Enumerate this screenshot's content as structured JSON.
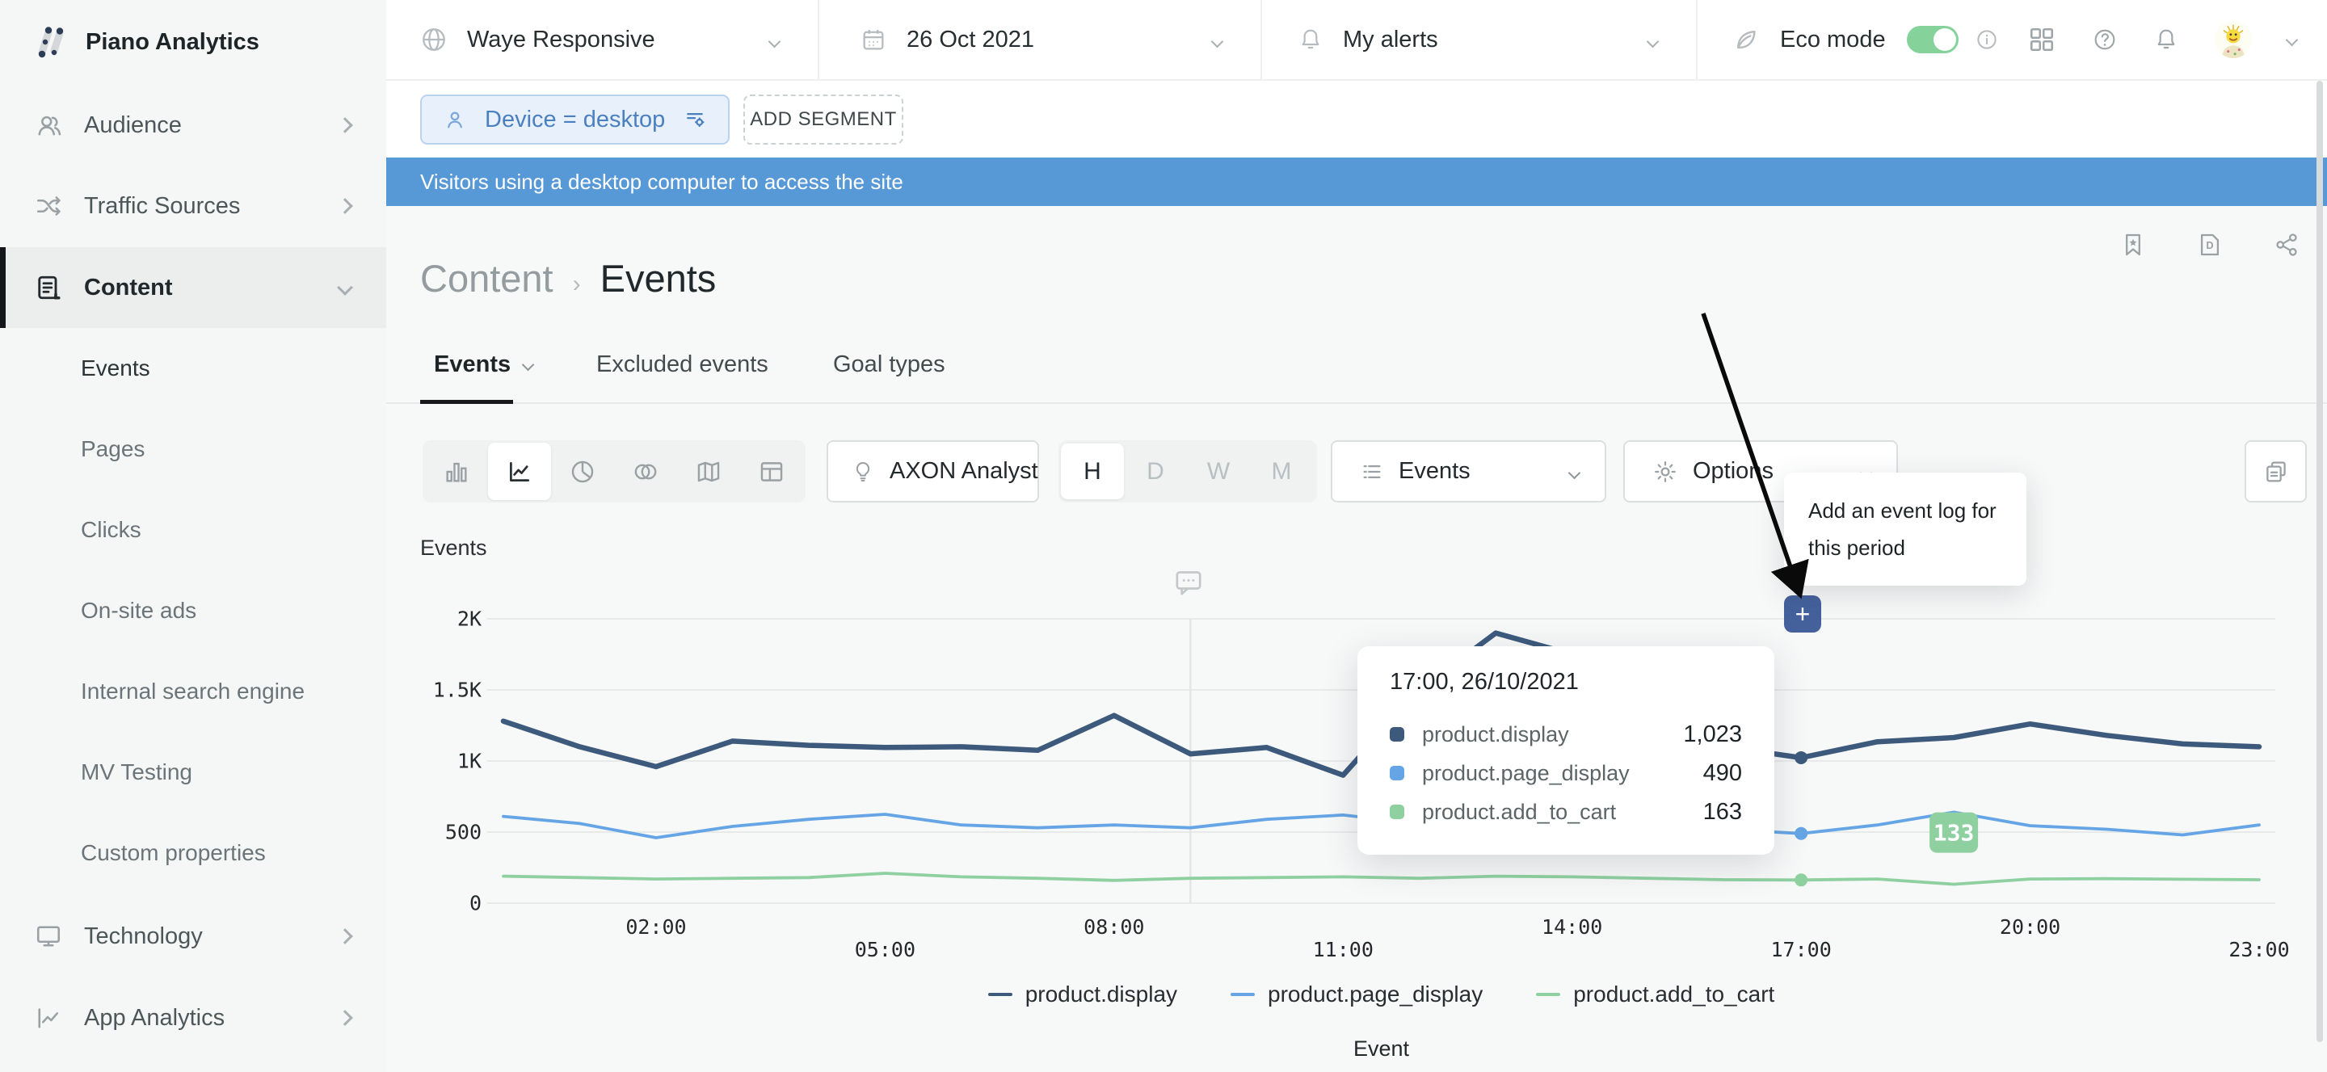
{
  "app": {
    "name": "Piano Analytics"
  },
  "topbar": {
    "site": {
      "label": "Waye Responsive"
    },
    "date": {
      "label": "26 Oct 2021"
    },
    "alerts": {
      "label": "My alerts"
    },
    "eco": {
      "label": "Eco mode",
      "enabled": true
    }
  },
  "segment_bar": {
    "segment_chip": "Device = desktop",
    "add_segment": "ADD SEGMENT",
    "banner": "Visitors using a desktop computer to access the site"
  },
  "sidebar": {
    "items": [
      {
        "label": "Audience"
      },
      {
        "label": "Traffic Sources"
      },
      {
        "label": "Content",
        "active": true,
        "expanded": true
      },
      {
        "label": "Technology"
      },
      {
        "label": "App Analytics"
      }
    ],
    "content_children": [
      {
        "label": "Events",
        "active": true
      },
      {
        "label": "Pages"
      },
      {
        "label": "Clicks"
      },
      {
        "label": "On-site ads"
      },
      {
        "label": "Internal search engine"
      },
      {
        "label": "MV Testing"
      },
      {
        "label": "Custom properties"
      }
    ]
  },
  "breadcrumb": {
    "parent": "Content",
    "separator": "›",
    "current": "Events"
  },
  "tabs": [
    {
      "label": "Events",
      "active": true
    },
    {
      "label": "Excluded events"
    },
    {
      "label": "Goal types"
    }
  ],
  "toolbar": {
    "chart_types": [
      "bar",
      "line",
      "pie",
      "venn",
      "map",
      "table"
    ],
    "active_chart_type": "line",
    "axon": "AXON Analyst",
    "granularity": [
      "H",
      "D",
      "W",
      "M"
    ],
    "granularity_active": "H",
    "metric_dropdown": "Events",
    "options_dropdown": "Options"
  },
  "annotation": {
    "line1": "Add an event log for",
    "line2": "this period",
    "add_button": "+"
  },
  "chart_tooltip": {
    "title": "17:00, 26/10/2021",
    "rows": [
      {
        "name": "product.display",
        "value": "1,023"
      },
      {
        "name": "product.page_display",
        "value": "490"
      },
      {
        "name": "product.add_to_cart",
        "value": "163"
      }
    ]
  },
  "chart_data": {
    "type": "line",
    "ylabel": "Events",
    "xlabel": "Event",
    "x_unit": "hour of 26/10/2021",
    "x": [
      0,
      1,
      2,
      3,
      4,
      5,
      6,
      7,
      8,
      9,
      10,
      11,
      12,
      13,
      14,
      15,
      16,
      17,
      18,
      19,
      20,
      21,
      22,
      23
    ],
    "ylim": [
      0,
      2000
    ],
    "grid": true,
    "grid_color": "#e8eaea",
    "legend_position": "bottom",
    "y_ticks": [
      {
        "label": "2K",
        "value": 2000
      },
      {
        "label": "1.5K",
        "value": 1500
      },
      {
        "label": "1K",
        "value": 1000
      },
      {
        "label": "500",
        "value": 500
      },
      {
        "label": "0",
        "value": 0
      }
    ],
    "x_ticks": [
      {
        "label": "02:00",
        "hour": 2,
        "row": "top"
      },
      {
        "label": "05:00",
        "hour": 5,
        "row": "bottom"
      },
      {
        "label": "08:00",
        "hour": 8,
        "row": "top"
      },
      {
        "label": "11:00",
        "hour": 11,
        "row": "bottom"
      },
      {
        "label": "14:00",
        "hour": 14,
        "row": "top"
      },
      {
        "label": "17:00",
        "hour": 17,
        "row": "bottom"
      },
      {
        "label": "20:00",
        "hour": 20,
        "row": "top"
      },
      {
        "label": "23:00",
        "hour": 23,
        "row": "bottom"
      }
    ],
    "series": [
      {
        "name": "product.display",
        "color": "#3d5a7d",
        "values": [
          1280,
          1100,
          960,
          1140,
          1110,
          1095,
          1100,
          1075,
          1320,
          1050,
          1095,
          900,
          1500,
          1900,
          1750,
          1400,
          1100,
          1023,
          1135,
          1165,
          1260,
          1180,
          1120,
          1100
        ]
      },
      {
        "name": "product.page_display",
        "color": "#65a5e6",
        "values": [
          610,
          560,
          460,
          540,
          590,
          625,
          550,
          530,
          550,
          530,
          590,
          620,
          560,
          640,
          650,
          600,
          520,
          490,
          550,
          640,
          545,
          520,
          480,
          550
        ]
      },
      {
        "name": "product.add_to_cart",
        "color": "#8fd0a0",
        "values": [
          190,
          180,
          170,
          175,
          180,
          210,
          185,
          175,
          160,
          175,
          180,
          185,
          175,
          190,
          185,
          175,
          165,
          163,
          170,
          133,
          170,
          172,
          168,
          165
        ]
      }
    ],
    "hover_hour": 17,
    "event_marker_hour": 9,
    "badge": {
      "series": "product.add_to_cart",
      "series_index": 2,
      "hour": 19,
      "label": "133",
      "color": "#8fd0a0"
    }
  },
  "colors": {
    "banner_blue": "#5799d7",
    "segment_text": "#4b80c0",
    "plus_button": "#44619c",
    "toggle_on": "#85d29b",
    "active_underline": "#17191b"
  }
}
